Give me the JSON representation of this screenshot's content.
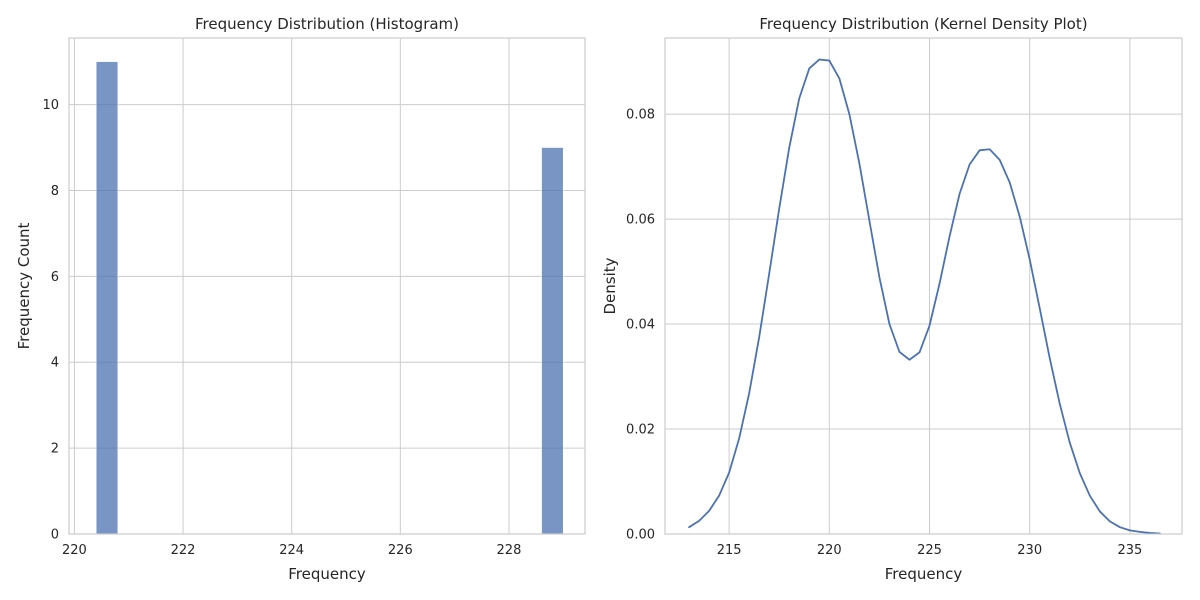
{
  "chart_data": [
    {
      "type": "bar",
      "title": "Frequency Distribution (Histogram)",
      "xlabel": "Frequency",
      "ylabel": "Frequency Count",
      "xlim": [
        219.9,
        229.4
      ],
      "ylim": [
        0,
        11.55
      ],
      "xticks": [
        220,
        222,
        224,
        226,
        228
      ],
      "yticks": [
        0,
        2,
        4,
        6,
        8,
        10
      ],
      "bins": [
        {
          "x0": 220.4,
          "x1": 220.8,
          "count": 11
        },
        {
          "x0": 228.6,
          "x1": 229.0,
          "count": 9
        }
      ],
      "grid": true,
      "color": "#4c72b0"
    },
    {
      "type": "line",
      "title": "Frequency Distribution (Kernel Density Plot)",
      "xlabel": "Frequency",
      "ylabel": "Density",
      "xlim": [
        211.8,
        237.6
      ],
      "ylim": [
        0,
        0.0945
      ],
      "xticks": [
        215,
        220,
        225,
        230,
        235
      ],
      "yticks": [
        0.0,
        0.02,
        0.04,
        0.06,
        0.08
      ],
      "ytick_labels": [
        "0.00",
        "0.02",
        "0.04",
        "0.06",
        "0.08"
      ],
      "series": [
        {
          "x": [
            213.0,
            213.5,
            214.0,
            214.5,
            215.0,
            215.5,
            216.0,
            216.5,
            217.0,
            217.5,
            218.0,
            218.5,
            219.0,
            219.5,
            220.0,
            220.5,
            221.0,
            221.5,
            222.0,
            222.5,
            223.0,
            223.5,
            224.0,
            224.5,
            225.0,
            225.5,
            226.0,
            226.5,
            227.0,
            227.5,
            228.0,
            228.5,
            229.0,
            229.5,
            230.0,
            230.5,
            231.0,
            231.5,
            232.0,
            232.5,
            233.0,
            233.5,
            234.0,
            234.5,
            235.0,
            235.5,
            236.0,
            236.5
          ],
          "y": [
            0.0013,
            0.0025,
            0.0044,
            0.0073,
            0.0117,
            0.0182,
            0.0268,
            0.0375,
            0.0496,
            0.062,
            0.0736,
            0.083,
            0.0887,
            0.0904,
            0.0902,
            0.0868,
            0.08,
            0.0706,
            0.0597,
            0.0489,
            0.04,
            0.0347,
            0.0332,
            0.0346,
            0.0397,
            0.0477,
            0.0567,
            0.0648,
            0.0704,
            0.0731,
            0.0733,
            0.0713,
            0.067,
            0.0605,
            0.0523,
            0.043,
            0.0335,
            0.0248,
            0.0174,
            0.0116,
            0.0073,
            0.0043,
            0.0024,
            0.0013,
            0.0007,
            0.0004,
            0.0002,
            0.0001
          ],
          "color": "#4c72b0"
        }
      ],
      "grid": true
    }
  ]
}
